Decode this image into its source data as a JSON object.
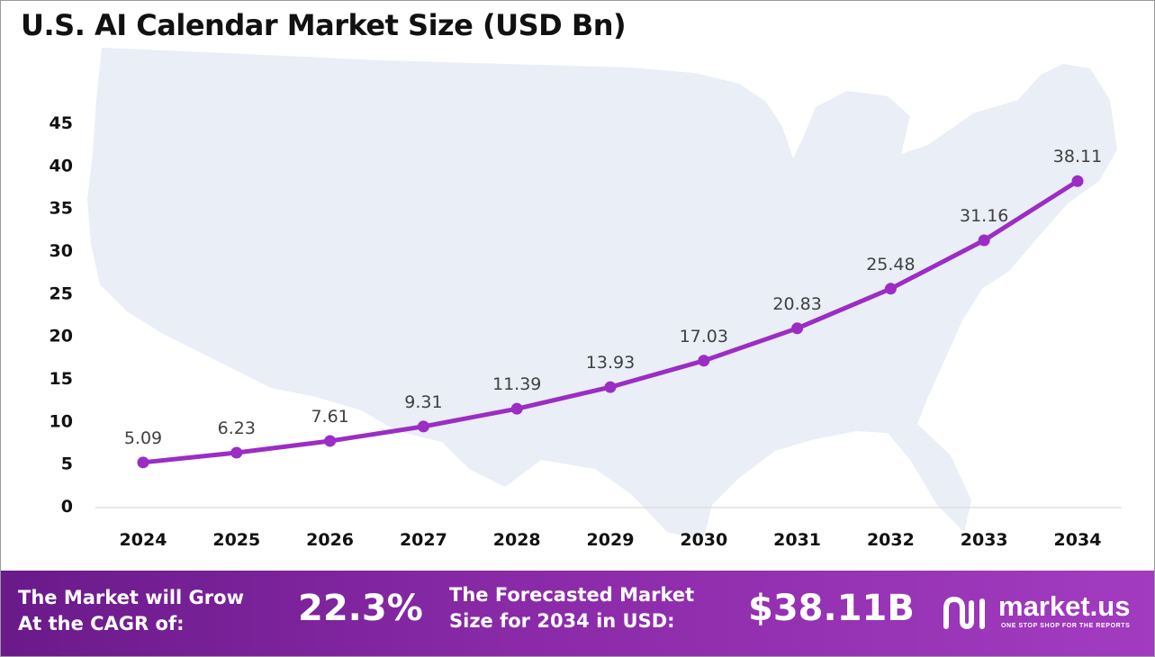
{
  "chart_data": {
    "type": "line",
    "title": "U.S. AI Calendar Market Size (USD Bn)",
    "xlabel": "",
    "ylabel": "",
    "categories": [
      "2024",
      "2025",
      "2026",
      "2027",
      "2028",
      "2029",
      "2030",
      "2031",
      "2032",
      "2033",
      "2034"
    ],
    "values": [
      5.09,
      6.23,
      7.61,
      9.31,
      11.39,
      13.93,
      17.03,
      20.83,
      25.48,
      31.16,
      38.11
    ],
    "data_labels": [
      "5.09",
      "6.23",
      "7.61",
      "9.31",
      "11.39",
      "13.93",
      "17.03",
      "20.83",
      "25.48",
      "31.16",
      "38.11"
    ],
    "yticks": [
      "0",
      "5",
      "10",
      "15",
      "20",
      "25",
      "30",
      "35",
      "40",
      "45"
    ],
    "ylim": [
      0,
      45
    ],
    "grid": false,
    "legend": "none",
    "line_color": "#9b2dc4",
    "background_shape": "map of the United States"
  },
  "footer": {
    "cagr_label_line1": "The Market will Grow",
    "cagr_label_line2": "At the CAGR of:",
    "cagr_value": "22.3%",
    "forecast_label_line1": "The Forecasted Market",
    "forecast_label_line2": "Size for 2034 in USD:",
    "forecast_value": "$38.11B",
    "brand_name": "market.us",
    "brand_tagline": "ONE STOP SHOP FOR THE REPORTS",
    "background_color": "#8a2aa8"
  }
}
